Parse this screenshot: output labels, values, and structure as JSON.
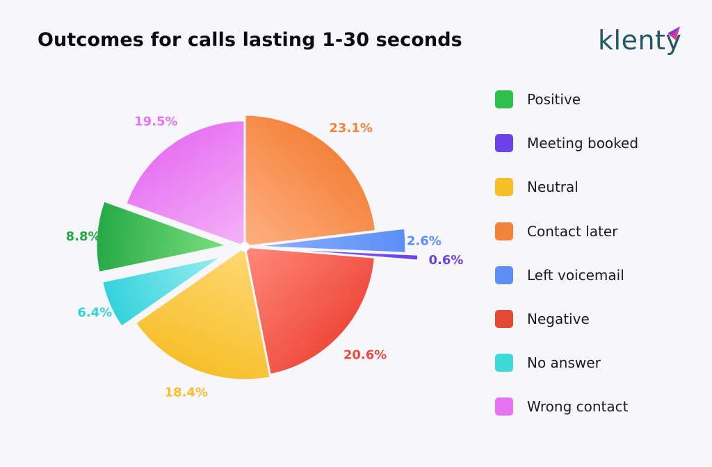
{
  "header": {
    "title": "Outcomes for calls lasting 1-30 seconds"
  },
  "brand": {
    "logo_text": "klenty",
    "logo_color": "#1e5866",
    "logo_mark_color": "#e0398a"
  },
  "chart_data": {
    "type": "pie",
    "title": "Outcomes for calls lasting 1-30 seconds",
    "legend_position": "right",
    "slices": [
      {
        "label": "Contact later",
        "value": 23.1,
        "value_label": "23.1%",
        "color": "#f3823a",
        "light": "#ffb083",
        "exploded": false
      },
      {
        "label": "Left voicemail",
        "value": 2.6,
        "value_label": "2.6%",
        "color": "#5b8ff5",
        "light": "#8fb2ff",
        "exploded": true
      },
      {
        "label": "Meeting booked",
        "value": 0.6,
        "value_label": "0.6%",
        "color": "#6a42e8",
        "light": "#8c6bff",
        "exploded": true
      },
      {
        "label": "Negative",
        "value": 20.6,
        "value_label": "20.6%",
        "color": "#ee4a3b",
        "light": "#ff8a7a",
        "exploded": false
      },
      {
        "label": "Neutral",
        "value": 18.4,
        "value_label": "18.4%",
        "color": "#f6bf2a",
        "light": "#ffd874",
        "exploded": false
      },
      {
        "label": "No answer",
        "value": 6.4,
        "value_label": "6.4%",
        "color": "#33d2dc",
        "light": "#9aeef0",
        "exploded": true
      },
      {
        "label": "Positive",
        "value": 8.8,
        "value_label": "8.8%",
        "color": "#25a946",
        "light": "#7de07e",
        "exploded": true
      },
      {
        "label": "Wrong contact",
        "value": 19.5,
        "value_label": "19.5%",
        "color": "#e773f2",
        "light": "#f4b3f8",
        "exploded": false
      }
    ]
  },
  "legend": {
    "items": [
      {
        "label": "Positive",
        "color": "#2fbf4a"
      },
      {
        "label": "Meeting booked",
        "color": "#6a42e8"
      },
      {
        "label": "Neutral",
        "color": "#f6bf2a"
      },
      {
        "label": "Contact later",
        "color": "#f3823a"
      },
      {
        "label": "Left voicemail",
        "color": "#5b8ff5"
      },
      {
        "label": "Negative",
        "color": "#e24a35"
      },
      {
        "label": "No answer",
        "color": "#3fdad8"
      },
      {
        "label": "Wrong contact",
        "color": "#e773f2"
      }
    ]
  }
}
